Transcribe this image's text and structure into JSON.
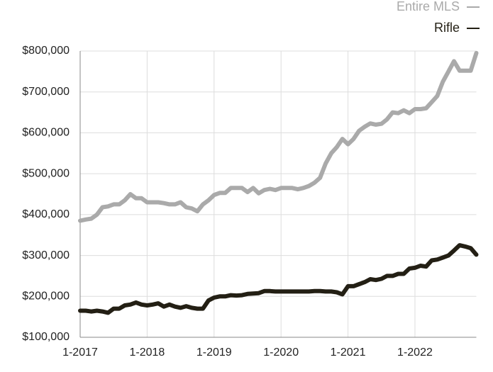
{
  "chart_data": {
    "type": "line",
    "categories": [
      "1-2017",
      null,
      null,
      null,
      null,
      null,
      null,
      null,
      null,
      null,
      null,
      null,
      "1-2018",
      null,
      null,
      null,
      null,
      null,
      null,
      null,
      null,
      null,
      null,
      null,
      "1-2019",
      null,
      null,
      null,
      null,
      null,
      null,
      null,
      null,
      null,
      null,
      null,
      "1-2020",
      null,
      null,
      null,
      null,
      null,
      null,
      null,
      null,
      null,
      null,
      null,
      "1-2021",
      null,
      null,
      null,
      null,
      null,
      null,
      null,
      null,
      null,
      null,
      null,
      "1-2022",
      null,
      null,
      null,
      null,
      null,
      null,
      null,
      null,
      null,
      null,
      null
    ],
    "series": [
      {
        "name": "Entire MLS",
        "color": "#aaaaaa",
        "values": [
          385000,
          388000,
          390000,
          400000,
          418000,
          420000,
          425000,
          425000,
          435000,
          450000,
          440000,
          440000,
          430000,
          430000,
          430000,
          428000,
          425000,
          425000,
          430000,
          418000,
          415000,
          408000,
          425000,
          435000,
          448000,
          453000,
          453000,
          465000,
          465000,
          465000,
          455000,
          465000,
          452000,
          460000,
          463000,
          460000,
          465000,
          465000,
          465000,
          462000,
          465000,
          470000,
          478000,
          490000,
          525000,
          550000,
          565000,
          585000,
          572000,
          585000,
          605000,
          615000,
          623000,
          620000,
          622000,
          633000,
          650000,
          648000,
          655000,
          648000,
          658000,
          658000,
          660000,
          675000,
          690000,
          725000,
          750000,
          775000,
          752000,
          752000,
          752000,
          795000
        ]
      },
      {
        "name": "Rifle",
        "color": "#231f14",
        "values": [
          165000,
          165000,
          163000,
          165000,
          163000,
          160000,
          170000,
          170000,
          178000,
          180000,
          185000,
          180000,
          178000,
          180000,
          183000,
          175000,
          180000,
          175000,
          172000,
          176000,
          172000,
          170000,
          170000,
          190000,
          197000,
          200000,
          200000,
          203000,
          202000,
          203000,
          206000,
          207000,
          208000,
          213000,
          213000,
          212000,
          212000,
          212000,
          212000,
          212000,
          212000,
          212000,
          213000,
          213000,
          212000,
          212000,
          210000,
          205000,
          225000,
          225000,
          230000,
          235000,
          242000,
          240000,
          243000,
          250000,
          250000,
          255000,
          255000,
          268000,
          270000,
          275000,
          273000,
          288000,
          290000,
          295000,
          300000,
          312000,
          325000,
          322000,
          318000,
          302000
        ]
      }
    ],
    "ylim": [
      100000,
      800000
    ],
    "yticks": [
      {
        "value": 100000,
        "label": "$100,000"
      },
      {
        "value": 200000,
        "label": "$200,000"
      },
      {
        "value": 300000,
        "label": "$300,000"
      },
      {
        "value": 400000,
        "label": "$400,000"
      },
      {
        "value": 500000,
        "label": "$500,000"
      },
      {
        "value": 600000,
        "label": "$600,000"
      },
      {
        "value": 700000,
        "label": "$700,000"
      },
      {
        "value": 800000,
        "label": "$800,000"
      }
    ],
    "grid": true
  }
}
